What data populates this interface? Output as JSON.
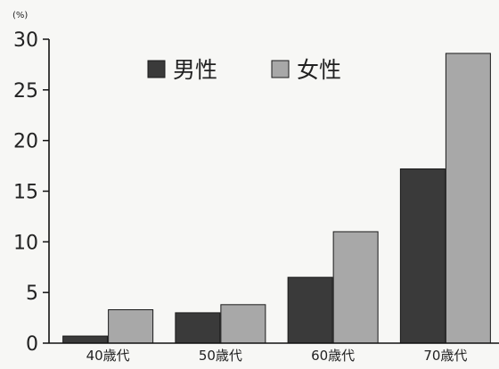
{
  "chart_data": {
    "type": "bar",
    "unit": "(%)",
    "categories": [
      "40歳代",
      "50歳代",
      "60歳代",
      "70歳代"
    ],
    "series": [
      {
        "name": "男性",
        "values": [
          0.7,
          3.0,
          6.5,
          17.2
        ],
        "color": "#3a3a3a"
      },
      {
        "name": "女性",
        "values": [
          3.3,
          3.8,
          11.0,
          28.6
        ],
        "color": "#a8a8a8"
      }
    ],
    "ylim": [
      0,
      30
    ],
    "yticks": [
      0,
      5,
      10,
      15,
      20,
      25,
      30
    ],
    "grid": false,
    "legend_position": "top-center"
  }
}
